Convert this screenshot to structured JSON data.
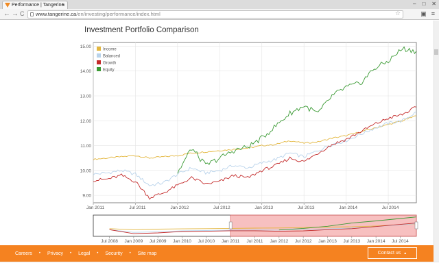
{
  "browser": {
    "tab_title": "Performance | Tangerine",
    "tab_close": "×",
    "url_host": "www.tangerine.ca",
    "url_path": "/en/investing/performance/index.html",
    "back": "←",
    "forward": "→",
    "reload": "C",
    "star": "☆",
    "window_buttons": [
      "–",
      "□",
      "✕"
    ]
  },
  "page": {
    "title": "Investment Portfolio Comparison"
  },
  "colors": {
    "income": "#e3b63d",
    "balanced": "#b9d3eb",
    "growth": "#c42a2a",
    "equity": "#3a9a33",
    "footer": "#f58220",
    "navigator_shade": "#f6b6b6"
  },
  "footer": {
    "links": [
      "Careers",
      "Privacy",
      "Legal",
      "Security",
      "Site map"
    ],
    "contact_label": "Contact us",
    "contact_arrow": "▲"
  },
  "chart_data": [
    {
      "type": "line",
      "title": "",
      "x": [
        "2011-01",
        "2011-03",
        "2011-05",
        "2011-07",
        "2011-09",
        "2011-11",
        "2012-01",
        "2012-03",
        "2012-05",
        "2012-07",
        "2012-09",
        "2012-11",
        "2013-01",
        "2013-03",
        "2013-05",
        "2013-07",
        "2013-09",
        "2013-11",
        "2014-01",
        "2014-03",
        "2014-05",
        "2014-07",
        "2014-09",
        "2014-11"
      ],
      "x_tick_labels": [
        "Jan 2011",
        "Jul 2011",
        "Jan 2012",
        "Jul 2012",
        "Jan 2013",
        "Jul 2013",
        "Jan 2014",
        "Jul 2014"
      ],
      "y_tick_labels": [
        "9.00",
        "10.00",
        "11.00",
        "12.00",
        "13.00",
        "14.00",
        "15.00"
      ],
      "ylim": [
        8.7,
        15.15
      ],
      "grid": true,
      "legend_position": "top-left",
      "series": [
        {
          "name": "Income",
          "color": "#e3b63d",
          "values": [
            10.45,
            10.5,
            10.55,
            10.6,
            10.5,
            10.55,
            10.6,
            10.7,
            10.75,
            10.8,
            10.85,
            10.9,
            11.0,
            11.05,
            11.2,
            11.1,
            11.15,
            11.3,
            11.4,
            11.55,
            11.7,
            11.85,
            12.0,
            12.2
          ]
        },
        {
          "name": "Balanced",
          "color": "#b9d3eb",
          "values": [
            9.85,
            9.9,
            10.0,
            9.85,
            9.4,
            9.5,
            9.85,
            10.1,
            9.9,
            10.0,
            10.2,
            10.1,
            10.3,
            10.45,
            10.7,
            10.55,
            10.8,
            11.05,
            11.2,
            11.45,
            11.7,
            11.9,
            12.0,
            12.35
          ]
        },
        {
          "name": "Growth",
          "color": "#c42a2a",
          "values": [
            9.6,
            9.65,
            9.8,
            9.55,
            8.9,
            9.1,
            9.4,
            9.7,
            9.45,
            9.55,
            9.8,
            9.7,
            10.0,
            10.2,
            10.5,
            10.35,
            10.7,
            11.05,
            11.25,
            11.55,
            11.85,
            12.1,
            12.25,
            12.55
          ]
        },
        {
          "name": "Equity",
          "color": "#3a9a33",
          "values": [
            null,
            null,
            null,
            null,
            null,
            null,
            9.9,
            10.9,
            10.2,
            10.5,
            10.8,
            10.95,
            11.3,
            11.8,
            12.3,
            12.6,
            12.3,
            13.0,
            13.35,
            13.5,
            14.1,
            14.4,
            14.9,
            14.8
          ]
        }
      ]
    },
    {
      "type": "area",
      "title": "",
      "x": [
        "2008-07",
        "2009-01",
        "2009-07",
        "2010-01",
        "2010-07",
        "2011-01",
        "2011-07",
        "2012-01",
        "2012-07",
        "2013-01",
        "2013-07",
        "2014-01",
        "2014-07",
        "2014-11"
      ],
      "x_tick_labels": [
        "Jul 2008",
        "Jan 2009",
        "Jul 2009",
        "Jan 2010",
        "Jul 2010",
        "Jan 2011",
        "Jul 2011",
        "Jan 2012",
        "Jul 2012",
        "Jan 2013",
        "Jul 2013",
        "Jan 2014",
        "Jul 2014"
      ],
      "selected_range": [
        "2011-01",
        "2014-11"
      ],
      "series": [
        {
          "name": "Income",
          "values": [
            10.4,
            10.0,
            10.2,
            10.3,
            10.4,
            10.5,
            10.6,
            10.65,
            10.8,
            11.0,
            11.1,
            11.4,
            11.85,
            12.2
          ]
        },
        {
          "name": "Balanced",
          "values": [
            10.0,
            9.0,
            9.2,
            9.6,
            9.7,
            9.85,
            9.9,
            9.85,
            10.0,
            10.3,
            10.6,
            11.2,
            11.8,
            12.3
          ]
        },
        {
          "name": "Growth",
          "values": [
            10.0,
            8.5,
            8.8,
            9.3,
            9.4,
            9.6,
            9.6,
            9.4,
            9.55,
            10.0,
            10.4,
            11.2,
            12.0,
            12.5
          ]
        },
        {
          "name": "Equity",
          "values": [
            null,
            null,
            null,
            null,
            null,
            null,
            null,
            9.9,
            10.5,
            11.3,
            12.5,
            13.3,
            14.2,
            14.8
          ]
        }
      ]
    }
  ]
}
